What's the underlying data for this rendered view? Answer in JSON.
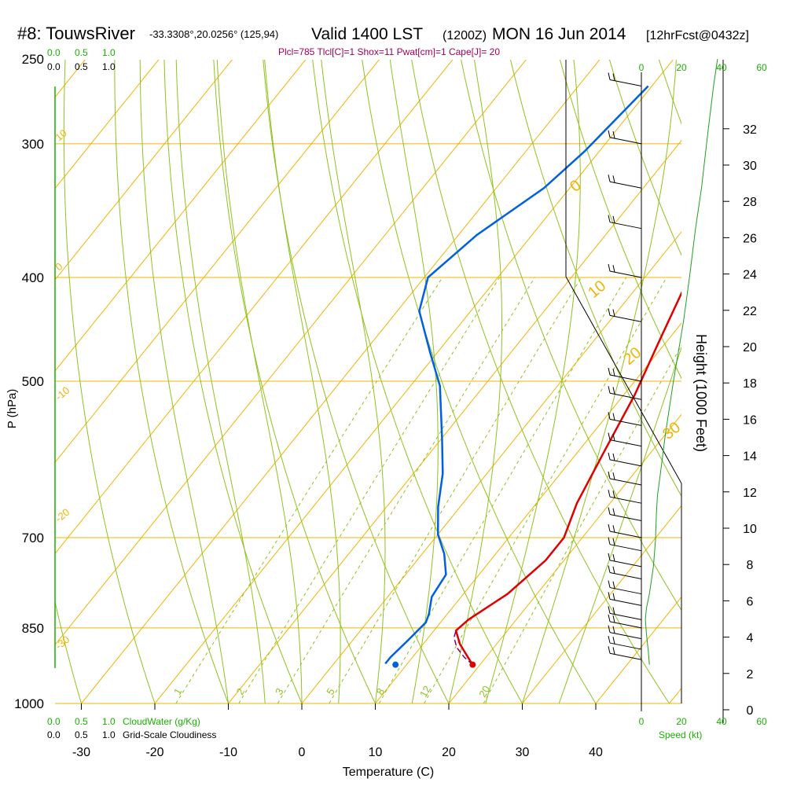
{
  "header": {
    "station": "#8: TouwsRiver",
    "coords": "-33.3308°,20.0256° (125,94)",
    "valid": "Valid 1400 LST",
    "zulu": "(1200Z)",
    "date": "MON 16 Jun 2014",
    "forecast": "[12hrFcst@0432z]",
    "indices": "Plcl=785 Tlcl[C]=1 Shox=11 Pwat[cm]=1 Cape[J]= 20"
  },
  "colors": {
    "isobar": "#f0b400",
    "isotherm": "#f0b400",
    "dry_adiabat": "#8fc21e",
    "moist_adiabat": "#8fc21e",
    "mixing_ratio": "#8fc21e",
    "temperature": "#e00000",
    "dewpoint": "#0060e0",
    "parcel": "#800080",
    "wind_speed": "#1fa01f",
    "indices": "#a0005a",
    "green_label": "#19b000"
  },
  "cloud_scales": {
    "cloudwater_ticks": [
      "0.0",
      "0.5",
      "1.0"
    ],
    "cloudiness_ticks": [
      "0.0",
      "0.5",
      "1.0"
    ],
    "cloudwater_label": "CloudWater (g/Kg)",
    "cloudiness_label": "Grid-Scale Cloudiness"
  },
  "speed_axis": {
    "ticks": [
      "0",
      "20",
      "40",
      "60"
    ],
    "label": "Speed (kt)"
  },
  "chart_data": {
    "type": "line",
    "xlabel": "Temperature (C)",
    "ylabel": "P (hPa)",
    "y2label": "Height (1000 Feet)",
    "x_ticks": [
      "-30",
      "-20",
      "-10",
      "0",
      "10",
      "20",
      "30",
      "40"
    ],
    "pressure_ticks": [
      "250",
      "300",
      "400",
      "500",
      "700",
      "850",
      "1000"
    ],
    "height_ticks": [
      "0",
      "2",
      "4",
      "6",
      "8",
      "10",
      "12",
      "14",
      "16",
      "18",
      "20",
      "22",
      "24",
      "26",
      "28",
      "30",
      "32"
    ],
    "isotherm_labels": [
      "10",
      "0",
      "-10",
      "-20",
      "-30",
      "0",
      "10",
      "20",
      "30"
    ],
    "mixing_ratio_labels": [
      "1",
      "2",
      "3",
      "5",
      "8",
      "12",
      "20"
    ],
    "series": [
      {
        "key": "temperature",
        "points": [
          [
            -1.5,
            265
          ],
          [
            1,
            300
          ],
          [
            3.5,
            340
          ],
          [
            6,
            400
          ],
          [
            9,
            460
          ],
          [
            11.5,
            515
          ],
          [
            13.5,
            580
          ],
          [
            15.5,
            650
          ],
          [
            17.5,
            700
          ],
          [
            17.5,
            735
          ],
          [
            16,
            790
          ],
          [
            13.5,
            835
          ],
          [
            13,
            855
          ],
          [
            15,
            880
          ],
          [
            18,
            910
          ],
          [
            19,
            920
          ]
        ]
      },
      {
        "key": "dewpoint",
        "points": [
          [
            -20.5,
            265
          ],
          [
            -22,
            305
          ],
          [
            -23.5,
            330
          ],
          [
            -27.5,
            365
          ],
          [
            -29.5,
            400
          ],
          [
            -27,
            430
          ],
          [
            -21,
            470
          ],
          [
            -16,
            505
          ],
          [
            -10,
            565
          ],
          [
            -6,
            610
          ],
          [
            -3,
            655
          ],
          [
            0,
            695
          ],
          [
            3,
            725
          ],
          [
            5.5,
            758
          ],
          [
            6,
            795
          ],
          [
            7.5,
            825
          ],
          [
            8,
            840
          ],
          [
            7.5,
            875
          ],
          [
            7,
            905
          ],
          [
            7,
            918
          ]
        ]
      },
      {
        "key": "parcel",
        "points": [
          [
            19,
            920
          ],
          [
            17,
            905
          ],
          [
            15,
            887
          ],
          [
            13.5,
            868
          ],
          [
            13,
            855
          ]
        ]
      }
    ],
    "surface_points": [
      [
        19,
        920
      ],
      [
        8.5,
        920
      ]
    ],
    "wind_speed": {
      "points": [
        [
          4,
          920
        ],
        [
          3.5,
          895
        ],
        [
          2.5,
          860
        ],
        [
          2,
          835
        ],
        [
          2.5,
          815
        ],
        [
          4,
          790
        ],
        [
          6,
          745
        ],
        [
          7,
          705
        ],
        [
          7.5,
          665
        ],
        [
          8,
          640
        ],
        [
          9.5,
          610
        ],
        [
          12,
          560
        ],
        [
          16,
          500
        ],
        [
          21,
          440
        ],
        [
          24,
          400
        ],
        [
          27,
          360
        ],
        [
          30,
          330
        ],
        [
          33,
          295
        ],
        [
          36,
          265
        ],
        [
          38,
          250
        ]
      ]
    },
    "wind_barbs_pressure": [
      265,
      300,
      330,
      360,
      400,
      440,
      500,
      520,
      550,
      575,
      600,
      625,
      650,
      675,
      700,
      720,
      745,
      765,
      790,
      810,
      835,
      850,
      870,
      890,
      910
    ]
  }
}
